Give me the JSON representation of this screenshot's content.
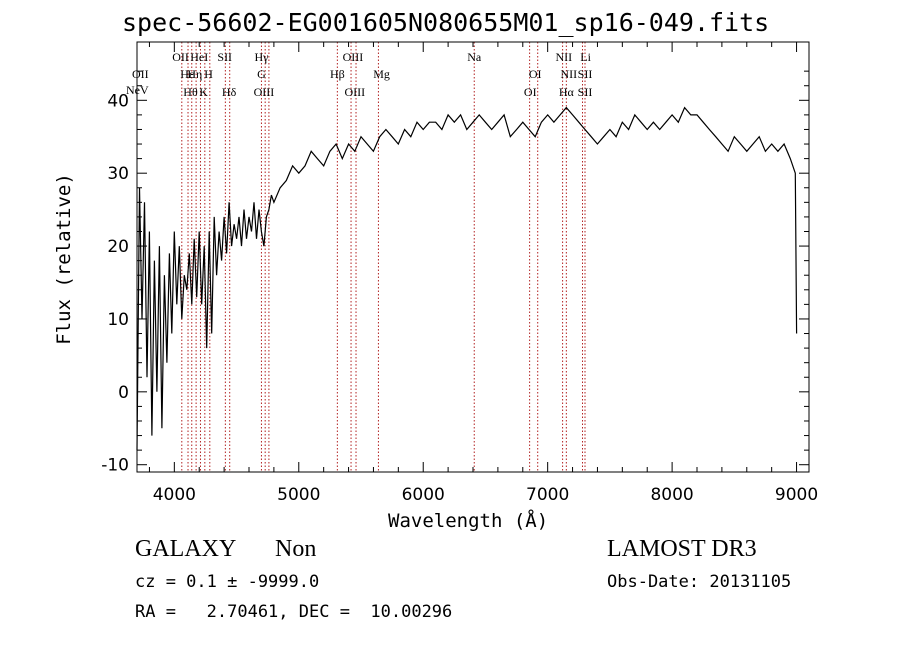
{
  "chart_data": {
    "type": "line",
    "title": "spec-56602-EG001605N080655M01_sp16-049.fits",
    "xlabel": "Wavelength (Å)",
    "ylabel": "Flux (relative)",
    "xlim": [
      3700,
      9100
    ],
    "ylim": [
      -11,
      48
    ],
    "xticks": [
      4000,
      5000,
      6000,
      7000,
      8000,
      9000
    ],
    "yticks": [
      -10,
      0,
      10,
      20,
      30,
      40
    ],
    "grid": false,
    "series": [
      {
        "color": "#000000",
        "x": [
          3700,
          3720,
          3740,
          3760,
          3780,
          3800,
          3820,
          3840,
          3860,
          3880,
          3900,
          3920,
          3940,
          3960,
          3980,
          4000,
          4020,
          4040,
          4060,
          4080,
          4100,
          4120,
          4140,
          4160,
          4180,
          4200,
          4220,
          4240,
          4260,
          4280,
          4300,
          4320,
          4340,
          4360,
          4380,
          4400,
          4420,
          4440,
          4460,
          4480,
          4500,
          4520,
          4540,
          4560,
          4580,
          4600,
          4620,
          4640,
          4660,
          4680,
          4700,
          4720,
          4740,
          4760,
          4780,
          4800,
          4850,
          4900,
          4950,
          5000,
          5050,
          5100,
          5150,
          5200,
          5250,
          5300,
          5350,
          5400,
          5450,
          5500,
          5550,
          5600,
          5650,
          5700,
          5750,
          5800,
          5850,
          5900,
          5950,
          6000,
          6050,
          6100,
          6150,
          6200,
          6250,
          6300,
          6350,
          6400,
          6450,
          6500,
          6550,
          6600,
          6650,
          6700,
          6750,
          6800,
          6850,
          6900,
          6950,
          7000,
          7050,
          7100,
          7150,
          7200,
          7250,
          7300,
          7350,
          7400,
          7450,
          7500,
          7550,
          7600,
          7650,
          7700,
          7750,
          7800,
          7850,
          7900,
          7950,
          8000,
          8050,
          8100,
          8150,
          8200,
          8250,
          8300,
          8350,
          8400,
          8450,
          8500,
          8550,
          8600,
          8650,
          8700,
          8750,
          8800,
          8850,
          8900,
          8950,
          8990,
          9000
        ],
        "y": [
          -8,
          28,
          10,
          26,
          2,
          22,
          -6,
          18,
          0,
          20,
          -5,
          16,
          4,
          19,
          8,
          22,
          12,
          20,
          10,
          16,
          14,
          19,
          12,
          21,
          13,
          22,
          12,
          20,
          6,
          22,
          8,
          24,
          16,
          22,
          18,
          24,
          19,
          26,
          20,
          23,
          21,
          24,
          20,
          25,
          21,
          24,
          22,
          26,
          21,
          25,
          22,
          20,
          24,
          25,
          27,
          26,
          28,
          29,
          31,
          30,
          31,
          33,
          32,
          31,
          33,
          34,
          32,
          34,
          33,
          35,
          34,
          33,
          35,
          36,
          35,
          34,
          36,
          35,
          37,
          36,
          37,
          37,
          36,
          38,
          37,
          38,
          36,
          37,
          38,
          37,
          36,
          37,
          38,
          35,
          36,
          37,
          36,
          35,
          37,
          38,
          37,
          38,
          39,
          38,
          37,
          36,
          35,
          34,
          35,
          36,
          35,
          37,
          36,
          38,
          37,
          36,
          37,
          36,
          37,
          38,
          37,
          39,
          38,
          38,
          37,
          36,
          35,
          34,
          33,
          35,
          34,
          33,
          34,
          35,
          33,
          34,
          33,
          34,
          32,
          30,
          8
        ]
      }
    ],
    "line_markers": [
      {
        "label": "NeV",
        "x": 3426,
        "row": 3
      },
      {
        "label": "OII",
        "x": 3727,
        "row": 1
      },
      {
        "label": "OII",
        "x": 4050,
        "row": 0
      },
      {
        "label": "Hε",
        "x": 4103,
        "row": 1
      },
      {
        "label": "Hθ",
        "x": 4130,
        "row": 2
      },
      {
        "label": "Hη",
        "x": 4165,
        "row": 1
      },
      {
        "label": "HeI",
        "x": 4200,
        "row": 0
      },
      {
        "label": "K",
        "x": 4235,
        "row": 2
      },
      {
        "label": "H",
        "x": 4275,
        "row": 1
      },
      {
        "label": "SII",
        "x": 4405,
        "row": 0
      },
      {
        "label": "Hδ",
        "x": 4440,
        "row": 2
      },
      {
        "label": "Hγ",
        "x": 4700,
        "row": 0
      },
      {
        "label": "G",
        "x": 4700,
        "row": 1
      },
      {
        "label": "OIII",
        "x": 4720,
        "row": 2
      },
      {
        "label": "Hβ",
        "x": 5310,
        "row": 1
      },
      {
        "label": "OIII",
        "x": 5435,
        "row": 0
      },
      {
        "label": "OIII",
        "x": 5450,
        "row": 2
      },
      {
        "label": "Mg",
        "x": 5665,
        "row": 1
      },
      {
        "label": "Na",
        "x": 6410,
        "row": 0
      },
      {
        "label": "OI",
        "x": 6900,
        "row": 1
      },
      {
        "label": "OI",
        "x": 6860,
        "row": 2
      },
      {
        "label": "NII",
        "x": 7130,
        "row": 0
      },
      {
        "label": "NII",
        "x": 7170,
        "row": 1
      },
      {
        "label": "Hα",
        "x": 7150,
        "row": 2
      },
      {
        "label": "Li",
        "x": 7305,
        "row": 0
      },
      {
        "label": "SII",
        "x": 7300,
        "row": 1
      },
      {
        "label": "SII",
        "x": 7300,
        "row": 2
      }
    ],
    "marker_lines_x": [
      4060,
      4110,
      4140,
      4175,
      4210,
      4245,
      4285,
      4410,
      4445,
      4700,
      4730,
      4760,
      5310,
      5420,
      5460,
      5640,
      6410,
      6855,
      6920,
      7120,
      7150,
      7280,
      7300
    ]
  },
  "footer": {
    "object_class": "GALAXY",
    "subclass": "Non",
    "survey": "LAMOST DR3",
    "cz_text": "cz = 0.1 ± -9999.0",
    "obs_date_text": "Obs-Date: 20131105",
    "radec_text": "RA =   2.70461, DEC =  10.00296"
  }
}
